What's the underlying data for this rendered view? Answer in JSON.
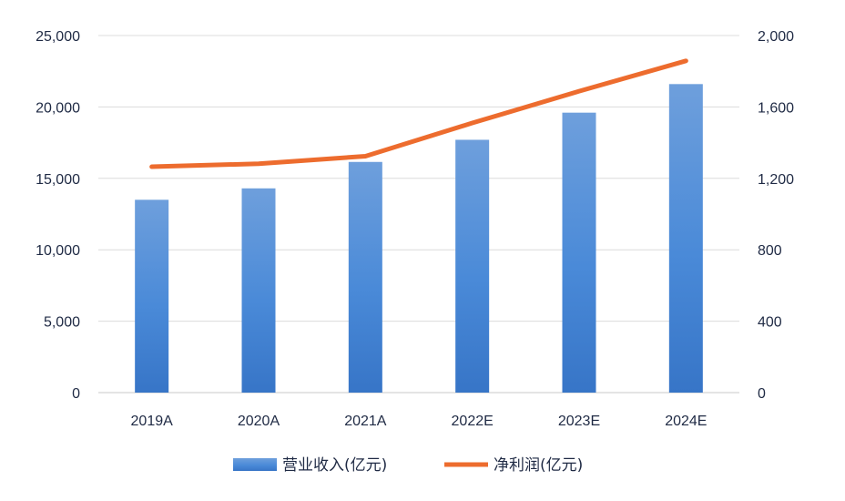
{
  "chart_data": {
    "type": "bar",
    "categories": [
      "2019A",
      "2020A",
      "2021A",
      "2022E",
      "2023E",
      "2024E"
    ],
    "series": [
      {
        "name": "营业收入(亿元)",
        "type": "bar",
        "axis": "left",
        "color": "#4a8ad8",
        "values": [
          13500,
          14300,
          16150,
          17700,
          19600,
          21600
        ]
      },
      {
        "name": "净利润(亿元)",
        "type": "line",
        "axis": "right",
        "color": "#ed6c2e",
        "values": [
          1265,
          1282,
          1324,
          1510,
          1688,
          1858
        ]
      }
    ],
    "y_left": {
      "ylim": [
        0,
        25000
      ],
      "ticks": [
        0,
        5000,
        10000,
        15000,
        20000,
        25000
      ],
      "tick_labels": [
        "0",
        "5,000",
        "10,000",
        "15,000",
        "20,000",
        "25,000"
      ]
    },
    "y_right": {
      "ylim": [
        0,
        2000
      ],
      "ticks": [
        0,
        400,
        800,
        1200,
        1600,
        2000
      ],
      "tick_labels": [
        "0",
        "400",
        "800",
        "1,200",
        "1,600",
        "2,000"
      ]
    },
    "grid": true,
    "legend": "bottom-center"
  }
}
